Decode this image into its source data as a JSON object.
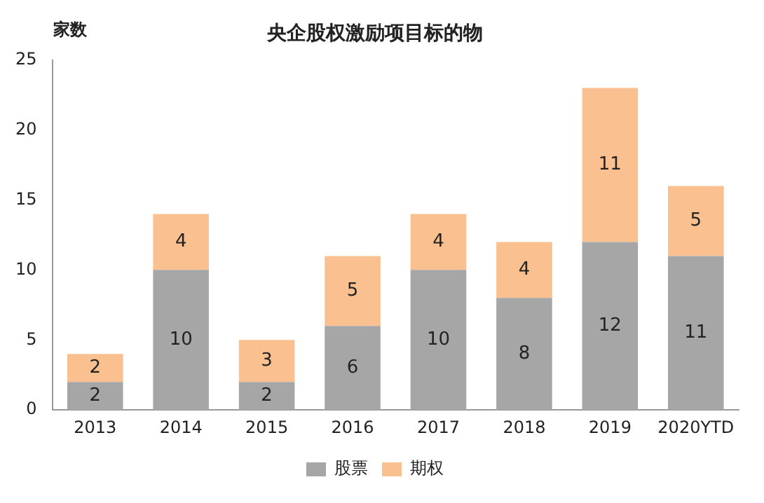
{
  "chart_data": {
    "type": "bar",
    "title": "央企股权激励项目标的物",
    "ylabel": "家数",
    "categories": [
      "2013",
      "2014",
      "2015",
      "2016",
      "2017",
      "2018",
      "2019",
      "2020YTD"
    ],
    "series": [
      {
        "name": "股票",
        "color": "#a6a6a6",
        "values": [
          2,
          10,
          2,
          6,
          10,
          8,
          12,
          11
        ]
      },
      {
        "name": "期权",
        "color": "#fac090",
        "values": [
          2,
          4,
          3,
          5,
          4,
          4,
          11,
          5
        ]
      }
    ],
    "stacked": true,
    "data_labels": true,
    "ylim": [
      0,
      25
    ],
    "yticks": [
      0,
      5,
      10,
      15,
      20,
      25
    ],
    "grid": false,
    "legend": "bottom"
  }
}
